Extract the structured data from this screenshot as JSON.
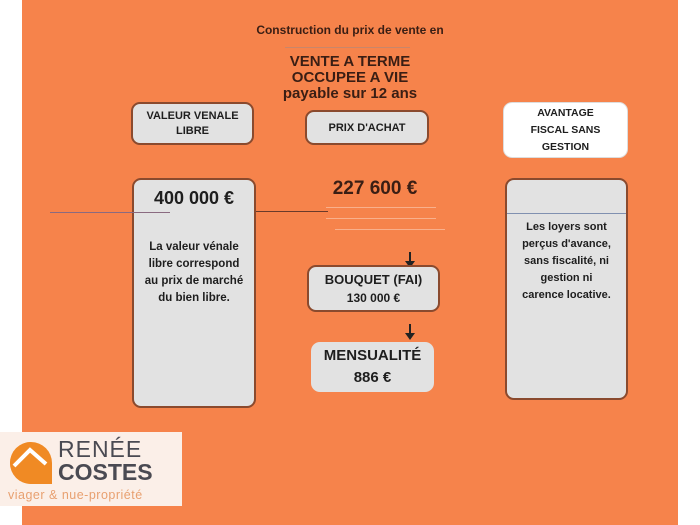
{
  "header": {
    "subtitle": "Construction du prix de vente en",
    "title_line1": "VENTE A TERME",
    "title_line2": "OCCUPEE A VIE",
    "title_line3": "payable sur 12  ans"
  },
  "columns": {
    "valeur": {
      "label_line1": "VALEUR VENALE",
      "label_line2": "LIBRE",
      "amount": "400 000 €",
      "description": [
        "La valeur vénale",
        "libre correspond",
        "au prix de marché",
        "du bien libre."
      ]
    },
    "prix": {
      "label": "PRIX D'ACHAT",
      "amount": "227 600 €",
      "bouquet_label": "BOUQUET (FAI)",
      "bouquet_amount": "130 000 €",
      "mensualite_label": "MENSUALITÉ",
      "mensualite_amount": "886 €"
    },
    "avantage": {
      "label_line1": "AVANTAGE",
      "label_line2": "FISCAL SANS",
      "label_line3": "GESTION",
      "description": [
        "Les loyers sont",
        "perçus d'avance,",
        "sans fiscalité, ni",
        "gestion ni",
        "carence locative."
      ]
    }
  },
  "logo": {
    "line1": "RENÉE",
    "line2": "COSTES",
    "tagline": "viager & nue-propriété"
  },
  "colors": {
    "background": "#f6834b",
    "box": "#e2e2e2",
    "logo_orange": "#f08a24",
    "logo_gray": "#4a4a52"
  }
}
